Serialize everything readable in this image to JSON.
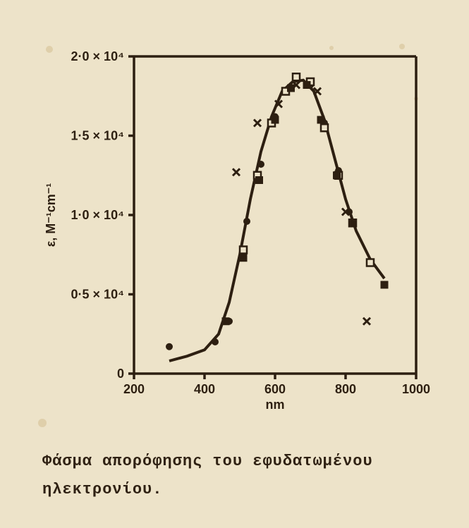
{
  "chart": {
    "type": "scatter-with-curve",
    "background_color": "#ede3c9",
    "ink_color": "#2d1f11",
    "xlim": [
      200,
      1000
    ],
    "ylim": [
      0,
      2.0
    ],
    "x_ticks": [
      200,
      400,
      600,
      800,
      1000
    ],
    "x_tick_labels": [
      "200",
      "400",
      "600",
      "800",
      "1000"
    ],
    "y_ticks": [
      0,
      0.5,
      1.0,
      1.5,
      2.0
    ],
    "y_tick_labels": [
      "0",
      "0·5 × 10⁴",
      "1·0 × 10⁴",
      "1·5 × 10⁴",
      "2·0 × 10⁴"
    ],
    "x_axis_title": "nm",
    "y_axis_title": "ε, M⁻¹cm⁻¹",
    "curve_points": [
      [
        300,
        0.08
      ],
      [
        350,
        0.11
      ],
      [
        400,
        0.15
      ],
      [
        440,
        0.25
      ],
      [
        470,
        0.45
      ],
      [
        500,
        0.75
      ],
      [
        530,
        1.1
      ],
      [
        560,
        1.4
      ],
      [
        590,
        1.62
      ],
      [
        620,
        1.78
      ],
      [
        650,
        1.84
      ],
      [
        680,
        1.85
      ],
      [
        710,
        1.78
      ],
      [
        740,
        1.6
      ],
      [
        770,
        1.35
      ],
      [
        800,
        1.1
      ],
      [
        830,
        0.9
      ],
      [
        870,
        0.72
      ],
      [
        910,
        0.6
      ]
    ],
    "series": {
      "dot": {
        "marker": "dot",
        "size": 5,
        "points": [
          [
            300,
            0.17
          ],
          [
            430,
            0.2
          ],
          [
            470,
            0.33
          ],
          [
            520,
            0.96
          ],
          [
            560,
            1.32
          ],
          [
            600,
            1.62
          ],
          [
            640,
            1.8
          ],
          [
            700,
            1.82
          ],
          [
            740,
            1.58
          ],
          [
            780,
            1.28
          ],
          [
            810,
            1.02
          ]
        ]
      },
      "open_square": {
        "marker": "open_square",
        "size": 10,
        "points": [
          [
            510,
            0.78
          ],
          [
            550,
            1.25
          ],
          [
            590,
            1.58
          ],
          [
            630,
            1.78
          ],
          [
            660,
            1.87
          ],
          [
            700,
            1.84
          ],
          [
            740,
            1.55
          ],
          [
            780,
            1.25
          ],
          [
            820,
            0.95
          ],
          [
            870,
            0.7
          ]
        ]
      },
      "filled_square": {
        "marker": "filled_square",
        "size": 10,
        "points": [
          [
            460,
            0.33
          ],
          [
            510,
            0.73
          ],
          [
            555,
            1.22
          ],
          [
            600,
            1.6
          ],
          [
            645,
            1.8
          ],
          [
            690,
            1.82
          ],
          [
            730,
            1.6
          ],
          [
            775,
            1.25
          ],
          [
            820,
            0.95
          ],
          [
            910,
            0.56
          ]
        ]
      },
      "cross": {
        "marker": "x",
        "size": 10,
        "points": [
          [
            490,
            1.27
          ],
          [
            550,
            1.58
          ],
          [
            610,
            1.7
          ],
          [
            660,
            1.82
          ],
          [
            720,
            1.78
          ],
          [
            800,
            1.02
          ],
          [
            860,
            0.33
          ]
        ]
      }
    }
  },
  "caption_line1": "Φάσμα απορόφησης του εφυδατωμένου",
  "caption_line2": "ηλεκτρονίου.",
  "stain_color": "#c6a86f"
}
